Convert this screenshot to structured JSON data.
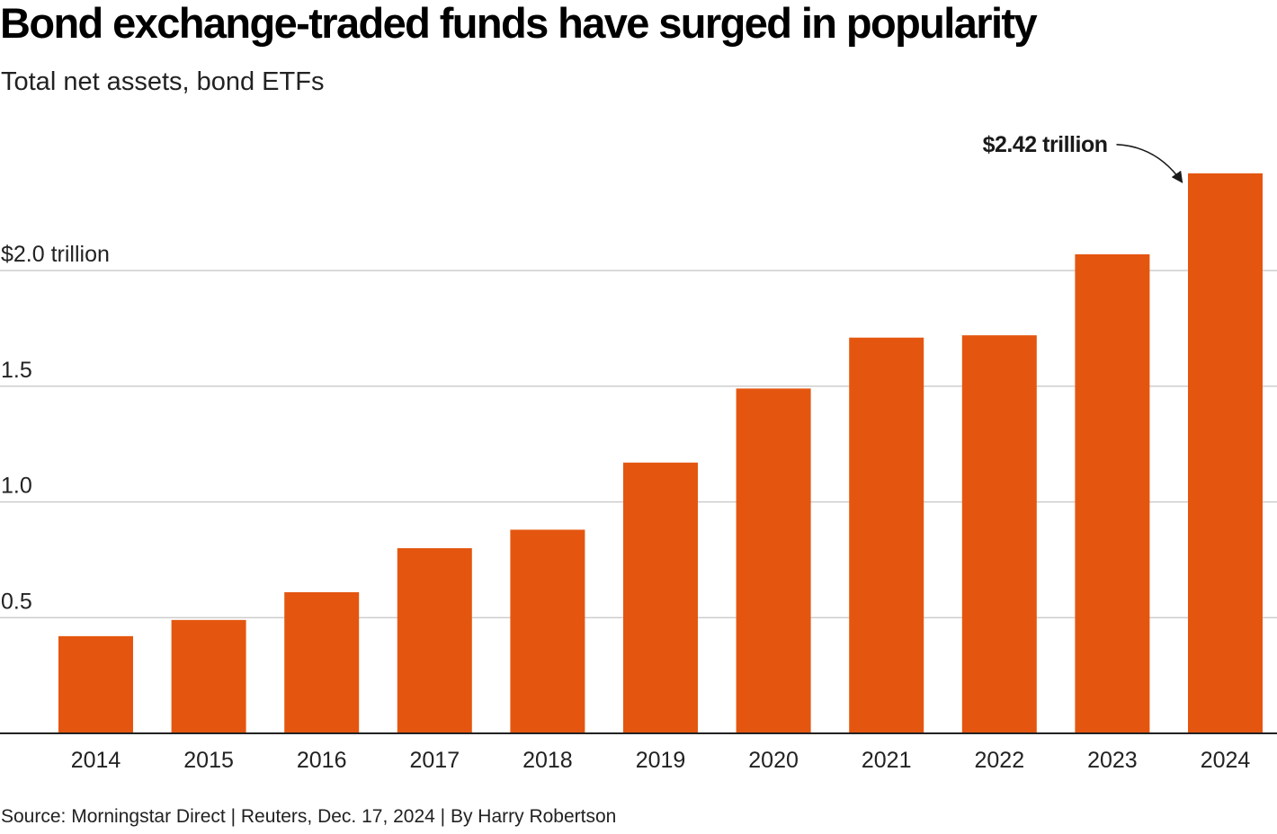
{
  "title": "Bond exchange-traded funds have surged in popularity",
  "subtitle": "Total net assets, bond ETFs",
  "source": "Source: Morningstar Direct | Reuters, Dec. 17, 2024 | By Harry Robertson",
  "colors": {
    "bar": "#e45610",
    "grid": "#c4c4c4",
    "axis": "#222222",
    "text": "#222222"
  },
  "chart_data": {
    "type": "bar",
    "title": "Bond exchange-traded funds have surged in popularity",
    "subtitle": "Total net assets, bond ETFs",
    "categories": [
      "2014",
      "2015",
      "2016",
      "2017",
      "2018",
      "2019",
      "2020",
      "2021",
      "2022",
      "2023",
      "2024"
    ],
    "values": [
      0.42,
      0.49,
      0.61,
      0.8,
      0.88,
      1.17,
      1.49,
      1.71,
      1.72,
      2.07,
      2.42
    ],
    "ylim": [
      0,
      2.42
    ],
    "yticks": [
      0.5,
      1.0,
      1.5,
      2.0
    ],
    "ytick_labels": [
      "0.5",
      "1.0",
      "1.5",
      "$2.0 trillion"
    ],
    "grid": true,
    "legend": "none",
    "annotations": [
      {
        "category": "2024",
        "value": 2.42,
        "text": "$2.42 trillion"
      }
    ]
  }
}
